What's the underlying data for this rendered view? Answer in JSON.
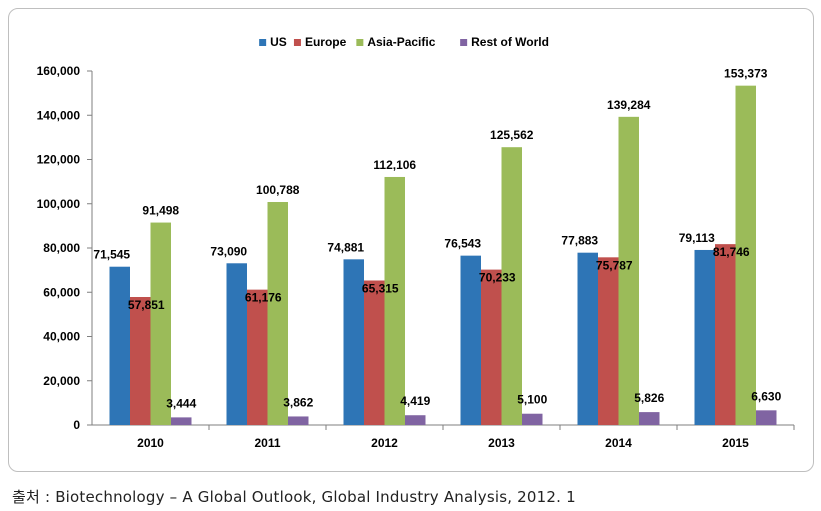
{
  "chart_data": {
    "type": "bar",
    "title": "",
    "xlabel": "",
    "ylabel": "",
    "ylim": [
      0,
      160000
    ],
    "yticks": [
      0,
      20000,
      40000,
      60000,
      80000,
      100000,
      120000,
      140000,
      160000
    ],
    "ytick_labels": [
      "0",
      "20,000",
      "40,000",
      "60,000",
      "80,000",
      "100,000",
      "120,000",
      "140,000",
      "160,000"
    ],
    "grid": false,
    "legend_position": "top-center",
    "categories": [
      "2010",
      "2011",
      "2012",
      "2013",
      "2014",
      "2015"
    ],
    "series": [
      {
        "name": "US",
        "color": "#2e75b6",
        "values": [
          71545,
          73090,
          74881,
          76543,
          77883,
          79113
        ],
        "labels": [
          "71,545",
          "73,090",
          "74,881",
          "76,543",
          "77,883",
          "79,113"
        ]
      },
      {
        "name": "Europe",
        "color": "#c0504d",
        "values": [
          57851,
          61176,
          65315,
          70233,
          75787,
          81746
        ],
        "labels": [
          "57,851",
          "61,176",
          "65,315",
          "70,233",
          "75,787",
          "81,746"
        ]
      },
      {
        "name": "Asia-Pacific",
        "color": "#9bbb59",
        "values": [
          91498,
          100788,
          112106,
          125562,
          139284,
          153373
        ],
        "labels": [
          "91,498",
          "100,788",
          "112,106",
          "125,562",
          "139,284",
          "153,373"
        ]
      },
      {
        "name": "Rest of World",
        "color": "#8064a2",
        "values": [
          3444,
          3862,
          4419,
          5100,
          5826,
          6630
        ],
        "labels": [
          "3,444",
          "3,862",
          "4,419",
          "5,100",
          "5,826",
          "6,630"
        ]
      }
    ]
  },
  "source_note": "출처 : Biotechnology – A Global Outlook, Global Industry Analysis, 2012. 1"
}
